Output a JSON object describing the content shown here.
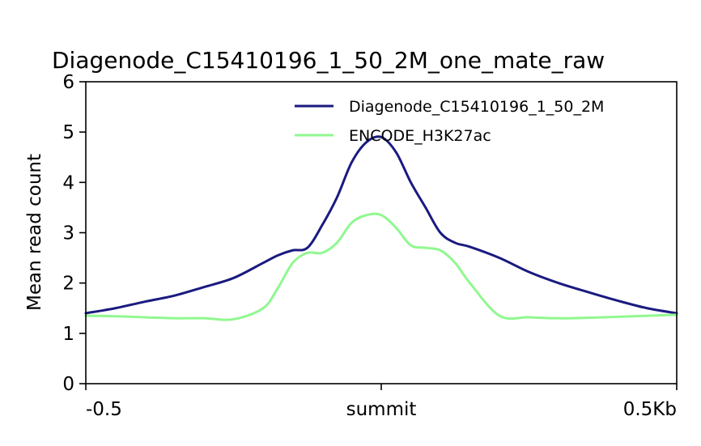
{
  "chart_data": {
    "type": "line",
    "title": "Diagenode_C15410196_1_50_2M_one_mate_raw",
    "ylabel": "Mean read count",
    "xlabel": "",
    "x_range": [
      -500,
      500
    ],
    "ylim": [
      0,
      6
    ],
    "y_ticks": [
      0,
      1,
      2,
      3,
      4,
      5,
      6
    ],
    "x_ticks": [
      {
        "value": -500,
        "label": "-0.5"
      },
      {
        "value": 0,
        "label": "summit"
      },
      {
        "value": 500,
        "label": "0.5Kb"
      }
    ],
    "grid": false,
    "legend_position": "top-right",
    "x": [
      -500,
      -450,
      -400,
      -350,
      -300,
      -250,
      -200,
      -175,
      -150,
      -125,
      -100,
      -75,
      -50,
      -25,
      0,
      25,
      50,
      75,
      100,
      125,
      150,
      200,
      250,
      300,
      350,
      400,
      450,
      500
    ],
    "series": [
      {
        "name": "Diagenode_C15410196_1_50_2M",
        "color": "#1a1a80",
        "values": [
          1.4,
          1.5,
          1.63,
          1.75,
          1.92,
          2.1,
          2.4,
          2.55,
          2.65,
          2.7,
          3.15,
          3.7,
          4.4,
          4.8,
          4.9,
          4.6,
          4.0,
          3.5,
          3.0,
          2.8,
          2.72,
          2.5,
          2.22,
          2.0,
          1.82,
          1.65,
          1.5,
          1.4
        ]
      },
      {
        "name": "ENCODE_H3K27ac",
        "color": "#90f890",
        "values": [
          1.35,
          1.34,
          1.32,
          1.3,
          1.3,
          1.28,
          1.5,
          1.9,
          2.4,
          2.6,
          2.6,
          2.8,
          3.2,
          3.35,
          3.35,
          3.1,
          2.75,
          2.7,
          2.65,
          2.4,
          2.0,
          1.35,
          1.32,
          1.3,
          1.31,
          1.33,
          1.35,
          1.37
        ]
      }
    ]
  }
}
